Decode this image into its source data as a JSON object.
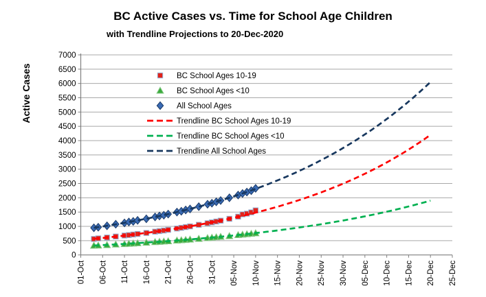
{
  "chart_data": {
    "type": "scatter",
    "title": "BC Active Cases vs. Time for School Age Children",
    "subtitle": "with Trendline Projections to 20-Dec-2020",
    "ylabel": "Active Cases",
    "ylim": [
      0,
      7000
    ],
    "y_tick_step": 500,
    "x_max_day": 85,
    "grid": "horizontal-only",
    "legend_position": "inside-top-left",
    "x_tick_labels": [
      "01-Oct",
      "06-Oct",
      "11-Oct",
      "16-Oct",
      "21-Oct",
      "26-Oct",
      "31-Oct",
      "05-Nov",
      "10-Nov",
      "15-Nov",
      "20-Nov",
      "25-Nov",
      "30-Nov",
      "05-Dec",
      "10-Dec",
      "15-Dec",
      "20-Dec",
      "25-Dec"
    ],
    "x_tick_days": [
      0,
      5,
      10,
      15,
      20,
      25,
      30,
      35,
      40,
      45,
      50,
      55,
      60,
      65,
      70,
      75,
      80,
      85
    ],
    "point_dates": [
      "04-Oct",
      "05-Oct",
      "07-Oct",
      "09-Oct",
      "11-Oct",
      "12-Oct",
      "13-Oct",
      "14-Oct",
      "16-Oct",
      "18-Oct",
      "19-Oct",
      "20-Oct",
      "21-Oct",
      "23-Oct",
      "24-Oct",
      "25-Oct",
      "26-Oct",
      "28-Oct",
      "30-Oct",
      "31-Oct",
      "01-Nov",
      "02-Nov",
      "04-Nov",
      "06-Nov",
      "07-Nov",
      "08-Nov",
      "09-Nov",
      "10-Nov"
    ],
    "point_days": [
      3,
      4,
      6,
      8,
      10,
      11,
      12,
      13,
      15,
      17,
      18,
      19,
      20,
      22,
      23,
      24,
      25,
      27,
      29,
      30,
      31,
      32,
      34,
      36,
      37,
      38,
      39,
      40
    ],
    "series": [
      {
        "name": "BC School Ages 10-19",
        "marker": "square",
        "fill": "#e2231a",
        "stroke": "#95b3d7",
        "values": [
          560,
          580,
          610,
          645,
          680,
          695,
          715,
          735,
          770,
          815,
          835,
          855,
          880,
          925,
          950,
          975,
          1000,
          1055,
          1110,
          1140,
          1170,
          1200,
          1265,
          1340,
          1420,
          1445,
          1490,
          1560
        ]
      },
      {
        "name": "BC School Ages <10",
        "marker": "triangle",
        "fill": "#3aaa3c",
        "stroke": "#86c986",
        "values": [
          330,
          335,
          350,
          370,
          385,
          395,
          405,
          415,
          435,
          455,
          465,
          475,
          485,
          510,
          520,
          530,
          545,
          570,
          595,
          610,
          625,
          640,
          665,
          700,
          715,
          730,
          745,
          765
        ]
      },
      {
        "name": "All School Ages",
        "marker": "diamond",
        "fill": "#3a6bb5",
        "stroke": "#1b3a66",
        "values": [
          950,
          970,
          1020,
          1075,
          1120,
          1155,
          1175,
          1210,
          1265,
          1330,
          1365,
          1390,
          1430,
          1500,
          1530,
          1575,
          1610,
          1690,
          1775,
          1810,
          1860,
          1905,
          2000,
          2095,
          2150,
          2200,
          2250,
          2330
        ]
      }
    ],
    "trendlines": [
      {
        "name": "Trendline BC School Ages 10-19",
        "color": "#fe0000",
        "fit": "exponential",
        "start_day": 3,
        "end_day": 80,
        "start_value": 565,
        "end_value": 4200
      },
      {
        "name": "Trendline BC School Ages <10",
        "color": "#00b050",
        "fit": "exponential",
        "start_day": 3,
        "end_day": 80,
        "start_value": 330,
        "end_value": 1900
      },
      {
        "name": "Trendline All School Ages",
        "color": "#17375e",
        "fit": "exponential",
        "start_day": 3,
        "end_day": 80,
        "start_value": 950,
        "end_value": 6050
      }
    ],
    "colors": {
      "grid": "#a8a8a8",
      "axis": "#7f7f7f",
      "tick_text": "#000000",
      "background": "#ffffff"
    }
  }
}
